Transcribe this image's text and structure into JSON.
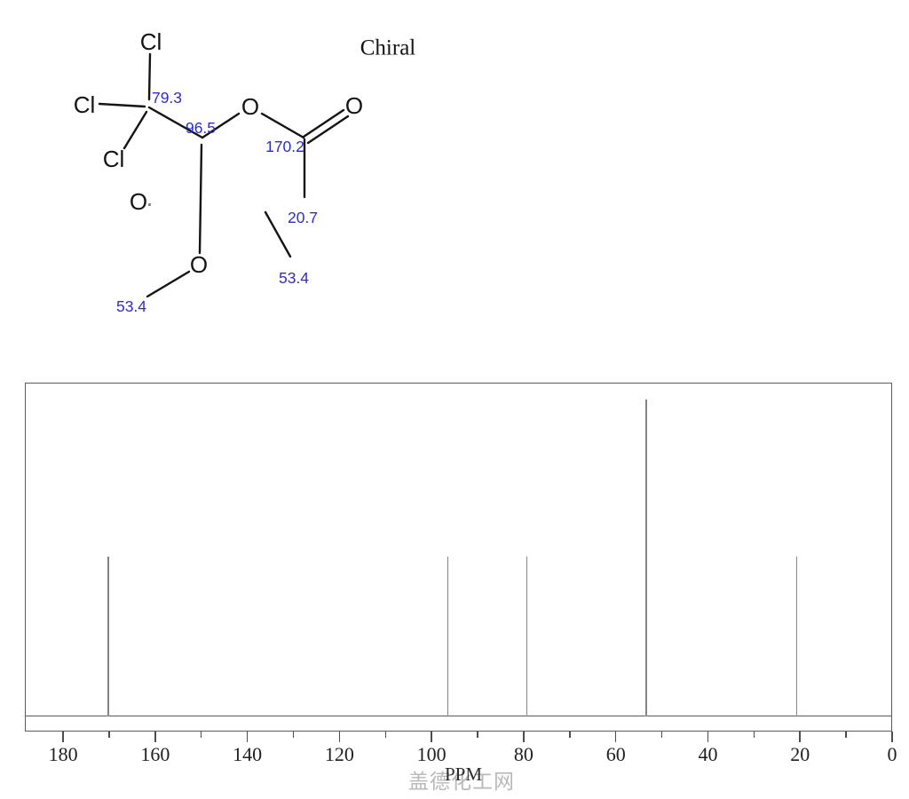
{
  "molecule": {
    "chiral_label": "Chiral",
    "atoms": {
      "cl_top": "Cl",
      "cl_left": "Cl",
      "cl_bottom": "Cl",
      "o_ester": "O",
      "o_carbonyl": "O",
      "o_methoxy": "O",
      "o_partial": "O"
    },
    "shifts": {
      "ccl3": "79.3",
      "methine": "96.5",
      "carbonyl": "170.2",
      "acetyl_methyl": "20.7",
      "methoxy_left": "53.4",
      "methoxy_right": "53.4"
    }
  },
  "chart_data": {
    "type": "line",
    "xlabel": "PPM",
    "grid": false,
    "x_axis": {
      "left_ppm": 188.3,
      "right_ppm": 0,
      "tick_start": 180,
      "minor_step": 10,
      "major_ticks": [
        180,
        160,
        140,
        120,
        100,
        80,
        60,
        40,
        20,
        0
      ]
    },
    "ylim": [
      0,
      1
    ],
    "peaks": [
      {
        "ppm": 170.2,
        "intensity": 0.48
      },
      {
        "ppm": 96.5,
        "intensity": 0.48
      },
      {
        "ppm": 79.3,
        "intensity": 0.48
      },
      {
        "ppm": 53.4,
        "intensity": 0.95
      },
      {
        "ppm": 20.7,
        "intensity": 0.48
      }
    ]
  },
  "watermark": "盖德化工网",
  "colors": {
    "shift_label": "#2d2dc9",
    "structure": "#141414",
    "peak": "#848484",
    "axis": "#5a5a5a"
  }
}
